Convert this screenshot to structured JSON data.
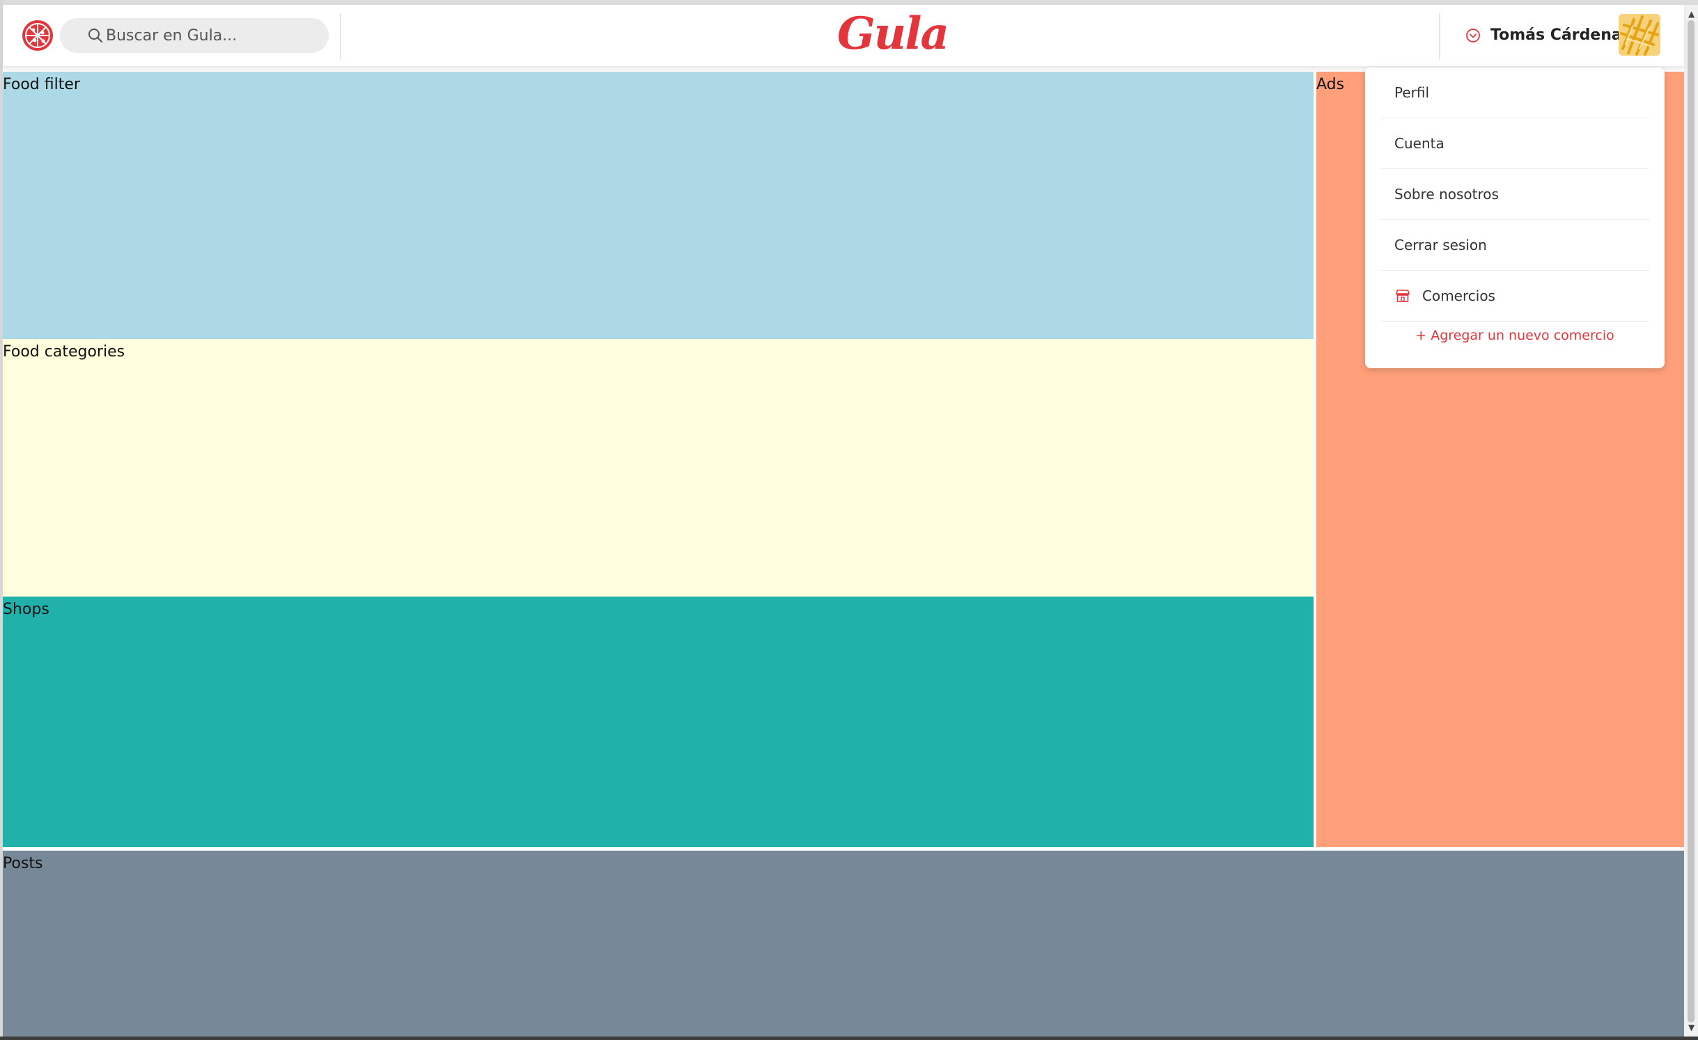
{
  "header": {
    "search_placeholder": "Buscar en Gula...",
    "brand": "Gula",
    "user_name": "Tomás Cárdenas"
  },
  "sections": {
    "food_filter": "Food filter",
    "food_categories": "Food categories",
    "shops": "Shops",
    "ads": "Ads",
    "posts": "Posts"
  },
  "dropdown": {
    "items": [
      {
        "label": "Perfil"
      },
      {
        "label": "Cuenta"
      },
      {
        "label": "Sobre nosotros"
      },
      {
        "label": "Cerrar sesion"
      },
      {
        "label": "Comercios",
        "icon": "store-icon"
      }
    ],
    "add_link": "+ Agregar un nuevo comercio"
  },
  "icons": {
    "logo": "pizza-icon",
    "search": "search-icon",
    "user_menu": "chevron-down-circle-icon",
    "avatar": "fries-avatar"
  },
  "colors": {
    "accent": "#e2363c",
    "food_filter": "#add8e6",
    "food_categories": "#ffffde",
    "shops": "#20b2aa",
    "ads": "#ffa07a",
    "posts": "#778899"
  }
}
